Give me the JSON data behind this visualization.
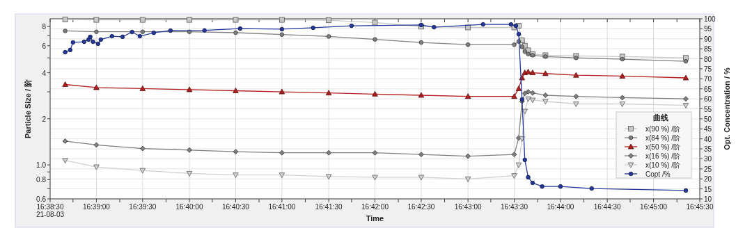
{
  "chart_data": {
    "type": "line",
    "xlabel": "Time",
    "ylabel": "Particle Size / 阶",
    "y2label": "Opt. Concentration / %",
    "legend_title": "曲线",
    "legend": "bottom right",
    "grid": true,
    "log": "y",
    "xlim": [
      16.6417,
      16.7583
    ],
    "xticks": [
      {
        "value": 16.6417,
        "label": "16:38:30\n21-08-03"
      },
      {
        "value": 16.6458,
        "label": null
      },
      {
        "value": 16.65,
        "label": "16:39:00"
      },
      {
        "value": 16.6542,
        "label": null
      },
      {
        "value": 16.6583,
        "label": "16:39:30"
      },
      {
        "value": 16.6625,
        "label": null
      },
      {
        "value": 16.6667,
        "label": "16:40:00"
      },
      {
        "value": 16.6708,
        "label": null
      },
      {
        "value": 16.675,
        "label": "16:40:30"
      },
      {
        "value": 16.6792,
        "label": null
      },
      {
        "value": 16.6833,
        "label": "16:41:00"
      },
      {
        "value": 16.6875,
        "label": null
      },
      {
        "value": 16.6917,
        "label": "16:41:30"
      },
      {
        "value": 16.6958,
        "label": null
      },
      {
        "value": 16.7,
        "label": "16:42:00"
      },
      {
        "value": 16.7042,
        "label": null
      },
      {
        "value": 16.7083,
        "label": "16:42:30"
      },
      {
        "value": 16.7125,
        "label": null
      },
      {
        "value": 16.7167,
        "label": "16:43:00"
      },
      {
        "value": 16.7208,
        "label": null
      },
      {
        "value": 16.725,
        "label": "16:43:30"
      },
      {
        "value": 16.7292,
        "label": null
      },
      {
        "value": 16.7333,
        "label": "16:44:00"
      },
      {
        "value": 16.7375,
        "label": null
      },
      {
        "value": 16.7417,
        "label": "16:44:30"
      },
      {
        "value": 16.7458,
        "label": null
      },
      {
        "value": 16.75,
        "label": "16:45:00"
      },
      {
        "value": 16.7542,
        "label": null
      },
      {
        "value": 16.7583,
        "label": "16:45:30"
      }
    ],
    "ylim": [
      0.6,
      9
    ],
    "yticks": [
      0.6,
      {
        "value": 0.7,
        "label": null
      },
      0.8,
      {
        "value": 0.9,
        "label": null
      },
      {
        "value": 1,
        "label": "1.0"
      },
      2,
      {
        "value": 3,
        "label": null
      },
      4,
      {
        "value": 5,
        "label": null
      },
      6,
      {
        "value": 7,
        "label": null
      },
      8
    ],
    "y2lim": [
      10,
      100
    ],
    "y2ticks": [
      10,
      15,
      20,
      25,
      30,
      35,
      40,
      45,
      50,
      55,
      60,
      65,
      70,
      75,
      80,
      85,
      90,
      95,
      100
    ],
    "series": [
      {
        "name": "x(90 %) /阶",
        "color": "#c8c8c8",
        "marker": "square",
        "x": [
          16.6444,
          16.65,
          16.6583,
          16.6667,
          16.675,
          16.6833,
          16.6917,
          16.7,
          16.7083,
          16.7167,
          16.725,
          16.7258,
          16.7264,
          16.7269,
          16.7275,
          16.7283,
          16.7306,
          16.7361,
          16.7444,
          16.7558
        ],
        "values": [
          8.9,
          8.85,
          8.85,
          8.85,
          8.85,
          8.85,
          8.8,
          8.5,
          8.0,
          7.9,
          7.9,
          8.1,
          6.5,
          6.0,
          5.6,
          5.3,
          5.2,
          5.15,
          5.1,
          5.0
        ]
      },
      {
        "name": "x(84 %) /阶",
        "color": "#7f7f7f",
        "marker": "circle",
        "x": [
          16.6444,
          16.65,
          16.6583,
          16.6667,
          16.675,
          16.6833,
          16.6917,
          16.7,
          16.7083,
          16.7167,
          16.725,
          16.7258,
          16.7264,
          16.7269,
          16.7275,
          16.7283,
          16.7306,
          16.7361,
          16.7444,
          16.7558
        ],
        "values": [
          7.5,
          7.4,
          7.4,
          7.4,
          7.3,
          7.1,
          6.9,
          6.6,
          6.3,
          6.1,
          6.1,
          6.4,
          5.9,
          5.5,
          5.3,
          5.2,
          5.1,
          5.0,
          4.9,
          4.75
        ]
      },
      {
        "name": "x(50 %) /阶",
        "color": "#b41e1e",
        "marker": "triangle",
        "x": [
          16.6444,
          16.65,
          16.6583,
          16.6667,
          16.675,
          16.6833,
          16.6917,
          16.7,
          16.7083,
          16.7167,
          16.725,
          16.7258,
          16.7264,
          16.7269,
          16.7275,
          16.7283,
          16.7306,
          16.7361,
          16.7444,
          16.7558
        ],
        "values": [
          3.35,
          3.2,
          3.15,
          3.1,
          3.05,
          3.0,
          2.95,
          2.9,
          2.85,
          2.8,
          2.8,
          3.15,
          3.7,
          4.0,
          4.05,
          4.0,
          3.95,
          3.85,
          3.8,
          3.7
        ]
      },
      {
        "name": "x(16 %) /阶",
        "color": "#7f7f7f",
        "marker": "diamond",
        "x": [
          16.6444,
          16.65,
          16.6583,
          16.6667,
          16.675,
          16.6833,
          16.6917,
          16.7,
          16.7083,
          16.7167,
          16.725,
          16.7258,
          16.7264,
          16.7269,
          16.7275,
          16.7283,
          16.7306,
          16.7361,
          16.7444,
          16.7558
        ],
        "values": [
          1.43,
          1.35,
          1.28,
          1.25,
          1.22,
          1.2,
          1.2,
          1.2,
          1.17,
          1.14,
          1.17,
          1.5,
          2.6,
          2.93,
          3.0,
          2.95,
          2.85,
          2.8,
          2.75,
          2.7
        ]
      },
      {
        "name": "x(10 %) /阶",
        "color": "#d0d0d0",
        "marker": "triangle_down",
        "x": [
          16.6444,
          16.65,
          16.6583,
          16.6667,
          16.675,
          16.6833,
          16.6917,
          16.7,
          16.7083,
          16.7167,
          16.725,
          16.7258,
          16.7264,
          16.7269,
          16.7275,
          16.7283,
          16.7306,
          16.7361,
          16.7444,
          16.7558
        ],
        "values": [
          1.07,
          0.97,
          0.92,
          0.88,
          0.86,
          0.86,
          0.84,
          0.83,
          0.83,
          0.81,
          0.85,
          1.0,
          1.48,
          2.24,
          2.7,
          2.65,
          2.6,
          2.5,
          2.5,
          2.45
        ]
      },
      {
        "name": "Copt /%",
        "color": "#24379a",
        "marker": "circle",
        "axis": "y2",
        "x": [
          16.6444,
          16.6453,
          16.6458,
          16.6478,
          16.6486,
          16.6489,
          16.6494,
          16.6503,
          16.6508,
          16.6528,
          16.6547,
          16.6564,
          16.6578,
          16.6603,
          16.6633,
          16.6694,
          16.6758,
          16.6833,
          16.6889,
          16.6958,
          16.7083,
          16.7106,
          16.7194,
          16.7244,
          16.7253,
          16.7258,
          16.7264,
          16.7269,
          16.7275,
          16.7283,
          16.73,
          16.7333,
          16.7389,
          16.7558
        ],
        "values": [
          83.3,
          84.4,
          88.2,
          88.5,
          89.6,
          91,
          88.5,
          87.5,
          89.6,
          91.3,
          91,
          93.4,
          91.3,
          93,
          94.1,
          94.2,
          95.1,
          94.8,
          95.5,
          96.5,
          96.9,
          95.8,
          97.2,
          97.2,
          96.5,
          92.3,
          59.7,
          29.5,
          20.8,
          18,
          16.2,
          16.2,
          15.2,
          14.2
        ]
      }
    ]
  }
}
